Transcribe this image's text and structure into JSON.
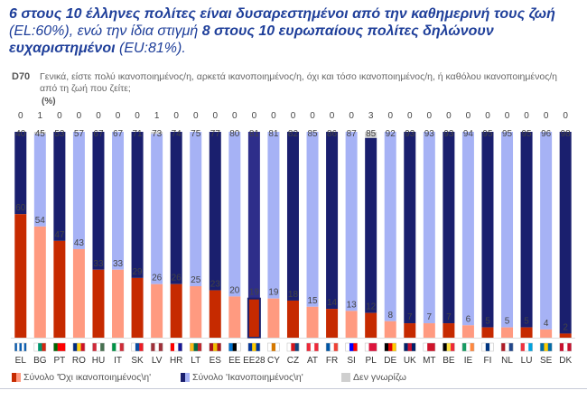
{
  "headline": {
    "strong1": "6 στους 10 έλληνες πολίτες είναι δυσαρεστημένοι από την καθημερινή τους ζωή",
    "rest1": " (EL:60%), ενώ την ίδια στιγμή ",
    "strong2": "8 στους 10 ευρωπαίους πολίτες δηλώνουν ευχαριστημένοι",
    "rest2": " (EU:81%)."
  },
  "question": {
    "code": "D70",
    "text": "Γενικά, είστε πολύ ικανοποιημένος/η, αρκετά ικανοποιημένος/η, όχι και τόσο ικανοποιημένος/η, ή καθόλου ικανοποιημένος/η από τη ζωή που ζείτε;",
    "unit": "(%)"
  },
  "legend": {
    "not_satisfied": "Σύνολο 'Όχι ικανοποιημένος\\η'",
    "satisfied": "Σύνολο 'Ικανοποιημένος\\η'",
    "dont_know": "Δεν γνωρίζω"
  },
  "colors": {
    "not_satisfied_dark": "#c62a00",
    "not_satisfied_light": "#ff9a80",
    "satisfied_dark": "#1a1f6e",
    "satisfied_light": "#a6b2f5",
    "highlight": "#2e2e8a"
  },
  "chart_data": {
    "type": "bar",
    "stacked": true,
    "categories": [
      "EL",
      "BG",
      "PT",
      "RO",
      "HU",
      "IT",
      "SK",
      "LV",
      "HR",
      "LT",
      "ES",
      "EE",
      "EE28",
      "CY",
      "CZ",
      "AT",
      "FR",
      "SI",
      "PL",
      "DE",
      "UK",
      "MT",
      "BE",
      "IE",
      "FI",
      "NL",
      "LU",
      "SE",
      "DK"
    ],
    "series": [
      {
        "name": "Σύνολο 'Όχι ικανοποιημένος\\η'",
        "values": [
          60,
          54,
          47,
          43,
          33,
          33,
          29,
          26,
          26,
          25,
          23,
          20,
          19,
          19,
          18,
          15,
          14,
          13,
          12,
          8,
          7,
          7,
          7,
          6,
          5,
          5,
          5,
          4,
          2
        ]
      },
      {
        "name": "Σύνολο 'Ικανοποιημένος\\η'",
        "values": [
          40,
          45,
          53,
          57,
          67,
          67,
          71,
          73,
          74,
          75,
          77,
          80,
          81,
          81,
          82,
          85,
          86,
          87,
          85,
          92,
          93,
          93,
          93,
          94,
          95,
          95,
          95,
          96,
          98
        ]
      },
      {
        "name": "Δεν γνωρίζω",
        "values": [
          0,
          1,
          0,
          0,
          0,
          0,
          0,
          1,
          0,
          0,
          0,
          0,
          0,
          0,
          0,
          0,
          0,
          0,
          3,
          0,
          0,
          0,
          0,
          0,
          0,
          0,
          0,
          0,
          0
        ]
      }
    ],
    "ylim": [
      0,
      100
    ],
    "highlight_category": "EE28",
    "flags": {
      "EL": [
        "#0d5eaf",
        "#ffffff",
        "#0d5eaf",
        "#ffffff",
        "#0d5eaf"
      ],
      "BG": [
        "#ffffff",
        "#00966e",
        "#d62612"
      ],
      "PT": [
        "#006600",
        "#ff0000",
        "#ff0000"
      ],
      "RO": [
        "#002b7f",
        "#fcd116",
        "#ce1126"
      ],
      "HU": [
        "#ce2939",
        "#ffffff",
        "#477050"
      ],
      "IT": [
        "#009246",
        "#ffffff",
        "#ce2b37"
      ],
      "SK": [
        "#ffffff",
        "#0b4ea2",
        "#ee1c25"
      ],
      "LV": [
        "#9e3039",
        "#ffffff",
        "#9e3039"
      ],
      "HR": [
        "#ff0000",
        "#ffffff",
        "#171796"
      ],
      "LT": [
        "#fdb913",
        "#006a44",
        "#c1272d"
      ],
      "ES": [
        "#aa151b",
        "#f1bf00",
        "#aa151b"
      ],
      "EE": [
        "#0072ce",
        "#000000",
        "#ffffff"
      ],
      "EE28": [
        "#003399",
        "#ffcc00",
        "#003399"
      ],
      "CY": [
        "#ffffff",
        "#d57800",
        "#ffffff"
      ],
      "CZ": [
        "#ffffff",
        "#d7141a",
        "#11457e"
      ],
      "AT": [
        "#ed2939",
        "#ffffff",
        "#ed2939"
      ],
      "FR": [
        "#0055a4",
        "#ffffff",
        "#ef4135"
      ],
      "SI": [
        "#ffffff",
        "#0000ff",
        "#ff0000"
      ],
      "PL": [
        "#ffffff",
        "#dc143c",
        "#dc143c"
      ],
      "DE": [
        "#000000",
        "#dd0000",
        "#ffce00"
      ],
      "UK": [
        "#012169",
        "#c8102e",
        "#012169"
      ],
      "MT": [
        "#ffffff",
        "#cf142b",
        "#cf142b"
      ],
      "BE": [
        "#000000",
        "#fae042",
        "#ed2939"
      ],
      "IE": [
        "#169b62",
        "#ffffff",
        "#ff883e"
      ],
      "FI": [
        "#ffffff",
        "#003580",
        "#ffffff"
      ],
      "NL": [
        "#ae1c28",
        "#ffffff",
        "#21468b"
      ],
      "LU": [
        "#ef3340",
        "#ffffff",
        "#00a3e0"
      ],
      "SE": [
        "#006aa7",
        "#fecc00",
        "#006aa7"
      ],
      "DK": [
        "#c8102e",
        "#ffffff",
        "#c8102e"
      ]
    }
  }
}
